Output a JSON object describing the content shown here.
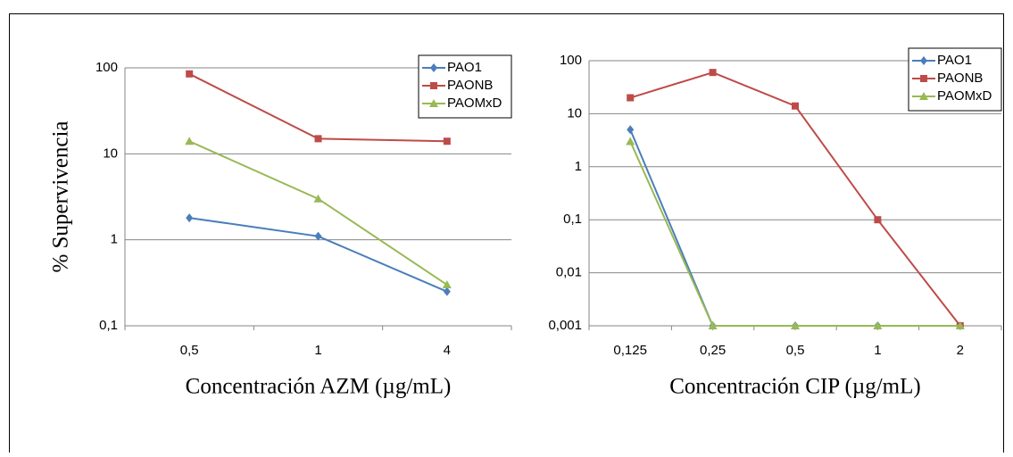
{
  "chart_data": [
    {
      "type": "line",
      "log_scale": true,
      "grid": true,
      "legend": "top-right",
      "y_label": "% Supervivencia",
      "x_label": "Concentración AZM (µg/mL)",
      "categories": [
        "0,5",
        "1",
        "4"
      ],
      "ylim": [
        0.1,
        100
      ],
      "yticks": [
        {
          "value": 0.1,
          "label": "0,1"
        },
        1,
        10,
        100
      ],
      "series": [
        {
          "name": "PAO1",
          "color": "#4a7ebb",
          "marker": "diamond",
          "values": [
            1.8,
            1.1,
            0.25
          ]
        },
        {
          "name": "PAONB",
          "color": "#be4b48",
          "marker": "square",
          "values": [
            85,
            15,
            14
          ]
        },
        {
          "name": "PAOMxD",
          "color": "#98b954",
          "marker": "triangle",
          "values": [
            14,
            3,
            0.3
          ]
        }
      ]
    },
    {
      "type": "line",
      "log_scale": true,
      "grid": true,
      "legend": "top-right",
      "x_label": "Concentración CIP (µg/mL)",
      "categories": [
        "0,125",
        "0,25",
        "0,5",
        "1",
        "2"
      ],
      "ylim": [
        0.001,
        100
      ],
      "yticks": [
        {
          "value": 0.001,
          "label": "0,001"
        },
        {
          "value": 0.01,
          "label": "0,01"
        },
        {
          "value": 0.1,
          "label": "0,1"
        },
        1,
        10,
        100
      ],
      "series": [
        {
          "name": "PAO1",
          "color": "#4a7ebb",
          "marker": "diamond",
          "values": [
            5,
            0.001,
            0.001,
            0.001,
            0.001
          ]
        },
        {
          "name": "PAONB",
          "color": "#be4b48",
          "marker": "square",
          "values": [
            20,
            60,
            14,
            0.1,
            0.001
          ]
        },
        {
          "name": "PAOMxD",
          "color": "#98b954",
          "marker": "triangle",
          "values": [
            3,
            0.001,
            0.001,
            0.001,
            0.001
          ]
        }
      ]
    }
  ]
}
